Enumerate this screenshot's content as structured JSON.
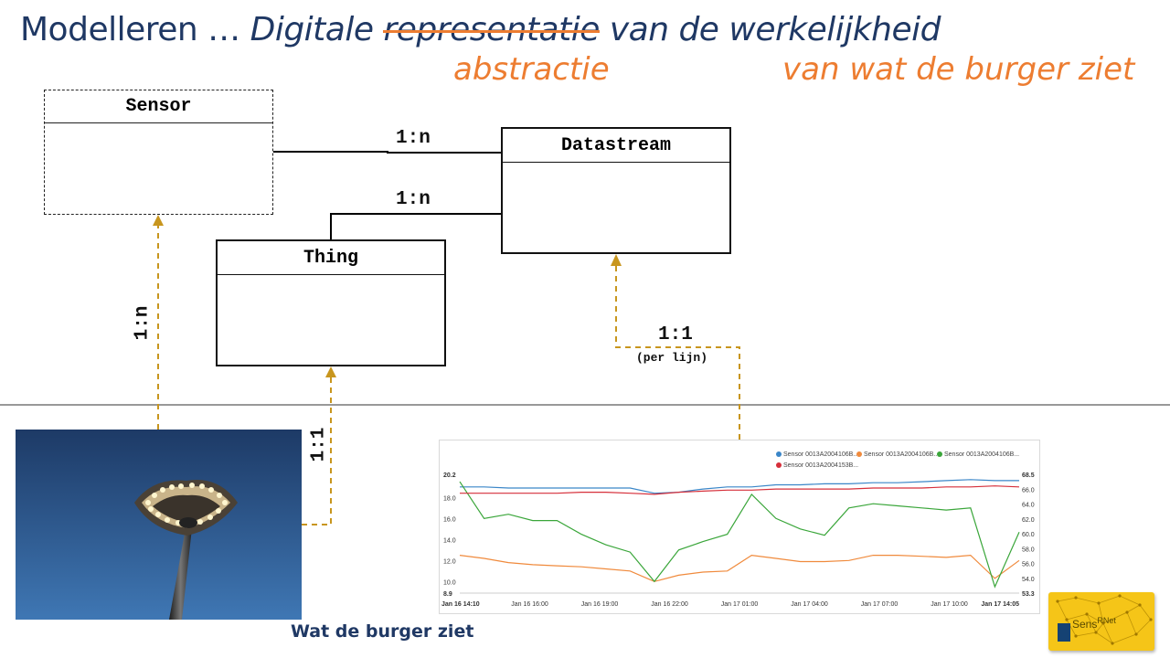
{
  "title": {
    "prefix": "Modelleren … ",
    "italic_word": "Digitale ",
    "struck_word": "representatie",
    "suffix": " van de werkelijkheid",
    "replacement_word": "abstractie",
    "qualifier": "van wat de burger ziet"
  },
  "uml": {
    "sensor": "Sensor",
    "datastream": "Datastream",
    "thing": "Thing"
  },
  "relations": {
    "sensor_datastream": "1:n",
    "thing_datastream": "1:n",
    "photo_sensor": "1:n",
    "photo_thing": "1:1",
    "chart_datastream": "1:1",
    "chart_datastream_note": "(per lijn)"
  },
  "caption": "Wat de burger ziet",
  "logo_text": {
    "left": "Sens",
    "right": "RNet"
  },
  "colors": {
    "title": "#1f3864",
    "accent": "#ed7d31",
    "dashed_link": "#c8961e",
    "series": [
      "#3a86c8",
      "#f08a3c",
      "#3aa63a",
      "#d62f3a"
    ]
  },
  "chart_data": {
    "type": "line",
    "legend": [
      "Sensor 0013A2004106B...",
      "Sensor 0013A2004106B...",
      "Sensor 0013A2004106B...",
      "Sensor 0013A2004153B..."
    ],
    "x_ticks": [
      "Jan 16 14:10",
      "Jan 16 16:00",
      "Jan 16 19:00",
      "Jan 16 22:00",
      "Jan 17 01:00",
      "Jan 17 04:00",
      "Jan 17 07:00",
      "Jan 17 10:00",
      "Jan 17 14:05"
    ],
    "y_left_ticks": [
      "20.2",
      "18.0",
      "16.0",
      "14.0",
      "12.0",
      "10.0",
      "8.9"
    ],
    "y_right_ticks": [
      "68.5",
      "66.0",
      "64.0",
      "62.0",
      "60.0",
      "58.0",
      "56.0",
      "54.0",
      "53.3"
    ],
    "ylim_left": [
      8.9,
      20.2
    ],
    "series": [
      {
        "color": "#3a86c8",
        "values": [
          19.0,
          19.0,
          18.9,
          18.9,
          18.9,
          18.9,
          18.9,
          18.9,
          18.4,
          18.5,
          18.8,
          19.0,
          19.0,
          19.2,
          19.2,
          19.3,
          19.3,
          19.4,
          19.4,
          19.5,
          19.6,
          19.7,
          19.6,
          19.6
        ]
      },
      {
        "color": "#f08a3c",
        "values": [
          12.5,
          12.2,
          11.8,
          11.6,
          11.5,
          11.4,
          11.2,
          11.0,
          10.0,
          10.6,
          10.9,
          11.0,
          12.5,
          12.2,
          11.9,
          11.9,
          12.0,
          12.5,
          12.5,
          12.4,
          12.3,
          12.5,
          10.3,
          12.0
        ]
      },
      {
        "color": "#3aa63a",
        "values": [
          19.5,
          16.0,
          16.4,
          15.8,
          15.8,
          14.5,
          13.5,
          12.8,
          10.0,
          13.0,
          13.8,
          14.5,
          18.3,
          16.0,
          15.0,
          14.4,
          17.0,
          17.4,
          17.2,
          17.0,
          16.8,
          17.0,
          9.5,
          14.7
        ]
      },
      {
        "color": "#d62f3a",
        "values": [
          18.4,
          18.4,
          18.4,
          18.4,
          18.4,
          18.5,
          18.5,
          18.4,
          18.3,
          18.5,
          18.6,
          18.7,
          18.7,
          18.8,
          18.8,
          18.8,
          18.8,
          18.9,
          18.9,
          18.9,
          19.0,
          19.0,
          19.1,
          19.0
        ]
      }
    ]
  }
}
